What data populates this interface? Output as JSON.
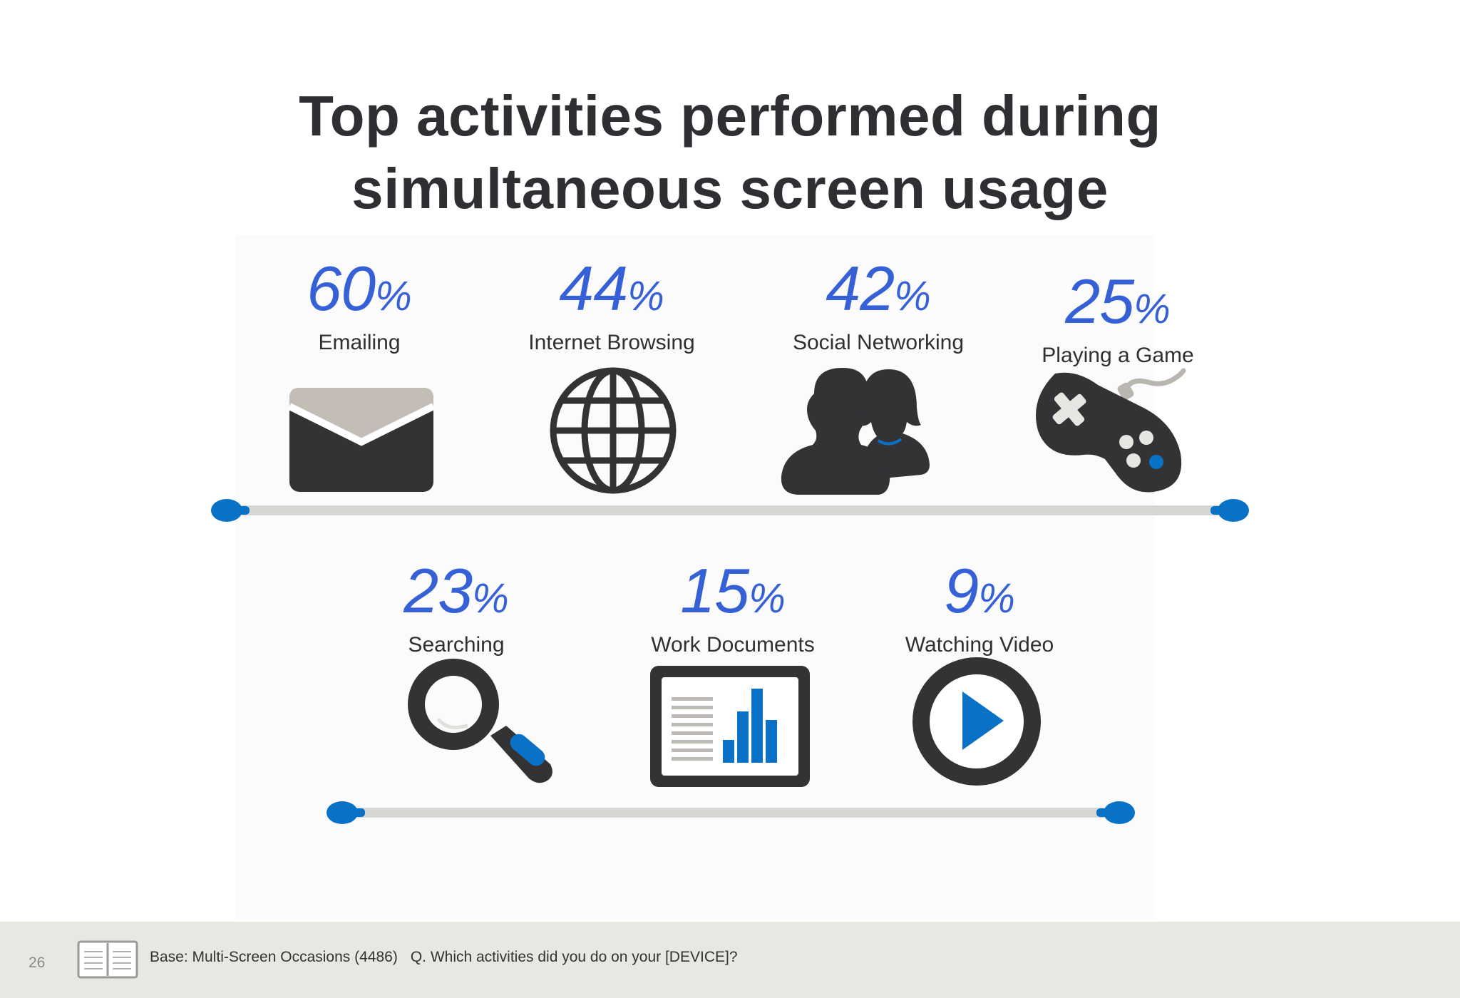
{
  "title": {
    "line1": "Top activities performed during",
    "line2": "simultaneous screen usage"
  },
  "percent_symbol": "%",
  "activities": [
    {
      "value": "60",
      "label": "Emailing",
      "icon": "envelope-icon"
    },
    {
      "value": "44",
      "label": "Internet Browsing",
      "icon": "globe-icon"
    },
    {
      "value": "42",
      "label": "Social Networking",
      "icon": "people-icon"
    },
    {
      "value": "25",
      "label": "Playing a Game",
      "icon": "gamepad-icon"
    },
    {
      "value": "23",
      "label": "Searching",
      "icon": "magnifier-icon"
    },
    {
      "value": "15",
      "label": "Work Documents",
      "icon": "document-chart-icon"
    },
    {
      "value": "9",
      "label": "Watching Video",
      "icon": "play-icon"
    }
  ],
  "colors": {
    "accent_blue": "#3560d6",
    "icon_dark": "#333336",
    "icon_blue": "#0a72c6",
    "track_gray": "#d6d6d2",
    "footer_bg": "#e8e8e3"
  },
  "footer": {
    "page_number": "26",
    "base": "Base: Multi-Screen Occasions (4486)",
    "question": "Q. Which activities did you do on your [DEVICE]?"
  }
}
